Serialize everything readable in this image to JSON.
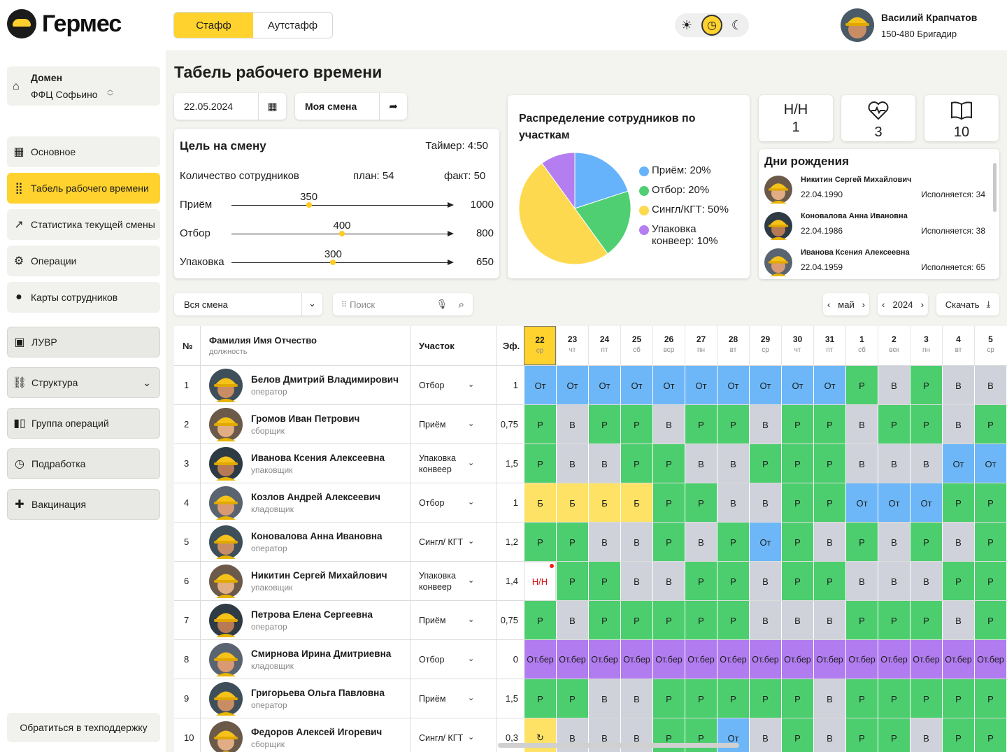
{
  "app": {
    "name": "Гермес"
  },
  "mode_tabs": [
    "Стафф",
    "Аутстафф"
  ],
  "user": {
    "name": "Василий Крапчатов",
    "role": "150-480 Бригадир"
  },
  "sidebar": {
    "domain_label": "Домен",
    "domain_value": "ФФЦ Софьино",
    "items": [
      {
        "label": "Основное",
        "icon": "grid-icon"
      },
      {
        "label": "Табель рабочего времени",
        "icon": "dots-grid-icon"
      },
      {
        "label": "Статистика текущей смены",
        "icon": "trend-icon"
      },
      {
        "label": "Операции",
        "icon": "gear-icon"
      },
      {
        "label": "Карты сотрудников",
        "icon": "person-icon"
      },
      {
        "label": "ЛУВР",
        "icon": "calendar-icon"
      },
      {
        "label": "Структура",
        "icon": "link-icon"
      },
      {
        "label": "Группа операций",
        "icon": "columns-icon"
      },
      {
        "label": "Подработка",
        "icon": "clock-icon"
      },
      {
        "label": "Вакцинация",
        "icon": "plus-icon"
      }
    ],
    "support": "Обратиться в техподдержку"
  },
  "page_title": "Табель рабочего времени",
  "date_value": "22.05.2024",
  "shift_button": "Моя смена",
  "goal": {
    "title": "Цель на смену",
    "timer": "Таймер: 4:50",
    "staff_label": "Количество сотрудников",
    "plan": "план: 54",
    "fact": "факт: 50",
    "rows": [
      {
        "label": "Приём",
        "value": "350",
        "max": "1000",
        "frac": 0.35
      },
      {
        "label": "Отбор",
        "value": "400",
        "max": "800",
        "frac": 0.5
      },
      {
        "label": "Упаковка",
        "value": "300",
        "max": "650",
        "frac": 0.46
      }
    ]
  },
  "distribution": {
    "title": "Распределение сотрудников по участкам",
    "legend": [
      {
        "label": "Приём: 20%",
        "color": "#66b3fb"
      },
      {
        "label": "Отбор: 20%",
        "color": "#4fcf72"
      },
      {
        "label": "Сингл/КГТ: 50%",
        "color": "#fdd94f"
      },
      {
        "label": "Упаковка конвеер: 10%",
        "color": "#b47ef0"
      }
    ]
  },
  "chart_data": {
    "type": "pie",
    "categories": [
      "Приём",
      "Отбор",
      "Сингл/КГТ",
      "Упаковка конвеер"
    ],
    "values": [
      20,
      20,
      50,
      10
    ]
  },
  "stats": {
    "nn_label": "Н/Н",
    "nn_value": "1",
    "health_value": "3",
    "book_value": "10"
  },
  "birthdays": {
    "title": "Дни рождения",
    "items": [
      {
        "name": "Никитин Сергей Михайлович",
        "date": "22.04.1990",
        "age": "Исполняется: 34"
      },
      {
        "name": "Коновалова Анна Ивановна",
        "date": "22.04.1986",
        "age": "Исполняется: 38"
      },
      {
        "name": "Иванова Ксения Алексеевна",
        "date": "22.04.1959",
        "age": "Исполняется: 65"
      }
    ]
  },
  "filters": {
    "shift": "Вся смена",
    "search_placeholder": "Поиск",
    "month": "май",
    "year": "2024",
    "download": "Скачать"
  },
  "table": {
    "col_no": "№",
    "col_name": "Фамилия Имя Отчество",
    "col_name_sub": "должность",
    "col_area": "Участок",
    "col_ef": "Эф.",
    "days": [
      {
        "d": "22",
        "w": "ср"
      },
      {
        "d": "23",
        "w": "чт"
      },
      {
        "d": "24",
        "w": "пт"
      },
      {
        "d": "25",
        "w": "сб"
      },
      {
        "d": "26",
        "w": "вср"
      },
      {
        "d": "27",
        "w": "пн"
      },
      {
        "d": "28",
        "w": "вт"
      },
      {
        "d": "29",
        "w": "ср"
      },
      {
        "d": "30",
        "w": "чт"
      },
      {
        "d": "31",
        "w": "пт"
      },
      {
        "d": "1",
        "w": "сб"
      },
      {
        "d": "2",
        "w": "вск"
      },
      {
        "d": "3",
        "w": "пн"
      },
      {
        "d": "4",
        "w": "вт"
      },
      {
        "d": "5",
        "w": "ср"
      }
    ],
    "rows": [
      {
        "no": "1",
        "name": "Белов Дмитрий Владимирович",
        "role": "оператор",
        "area": "Отбор",
        "ef": "1",
        "cells": [
          "От",
          "От",
          "От",
          "От",
          "От",
          "От",
          "От",
          "От",
          "От",
          "От",
          "Р",
          "В",
          "Р",
          "В",
          "В"
        ]
      },
      {
        "no": "2",
        "name": "Громов Иван Петрович",
        "role": "сборщик",
        "area": "Приём",
        "ef": "0,75",
        "cells": [
          "Р",
          "В",
          "Р",
          "Р",
          "В",
          "Р",
          "Р",
          "В",
          "Р",
          "Р",
          "В",
          "Р",
          "Р",
          "В",
          "Р"
        ]
      },
      {
        "no": "3",
        "name": "Иванова Ксения Алексеевна",
        "role": "упаковщик",
        "area": "Упаковка конвеер",
        "ef": "1,5",
        "cells": [
          "Р",
          "В",
          "В",
          "Р",
          "Р",
          "В",
          "В",
          "Р",
          "Р",
          "Р",
          "В",
          "В",
          "В",
          "От",
          "От"
        ]
      },
      {
        "no": "4",
        "name": "Козлов Андрей Алексеевич",
        "role": "кладовщик",
        "area": "Отбор",
        "ef": "1",
        "cells": [
          "Б",
          "Б",
          "Б",
          "Б",
          "Р",
          "Р",
          "В",
          "В",
          "Р",
          "Р",
          "От",
          "От",
          "От",
          "Р",
          "Р"
        ]
      },
      {
        "no": "5",
        "name": "Коновалова Анна Ивановна",
        "role": "оператор",
        "area": "Сингл/ КГТ",
        "ef": "1,2",
        "cells": [
          "Р",
          "Р",
          "В",
          "В",
          "Р",
          "В",
          "Р",
          "От",
          "Р",
          "В",
          "Р",
          "В",
          "Р",
          "В",
          "Р"
        ]
      },
      {
        "no": "6",
        "name": "Никитин Сергей Михайлович",
        "role": "упаковщик",
        "area": "Упаковка конвеер",
        "ef": "1,4",
        "cells": [
          "Н/Н",
          "Р",
          "Р",
          "В",
          "В",
          "Р",
          "Р",
          "В",
          "Р",
          "Р",
          "В",
          "В",
          "В",
          "Р",
          "Р"
        ]
      },
      {
        "no": "7",
        "name": "Петрова Елена Сергеевна",
        "role": "оператор",
        "area": "Приём",
        "ef": "0,75",
        "cells": [
          "Р",
          "В",
          "Р",
          "Р",
          "Р",
          "Р",
          "Р",
          "В",
          "В",
          "В",
          "Р",
          "Р",
          "Р",
          "В",
          "Р"
        ]
      },
      {
        "no": "8",
        "name": "Смирнова Ирина Дмитриевна",
        "role": "кладовщик",
        "area": "Отбор",
        "ef": "0",
        "cells": [
          "От.бер",
          "От.бер",
          "От.бер",
          "От.бер",
          "От.бер",
          "От.бер",
          "От.бер",
          "От.бер",
          "От.бер",
          "От.бер",
          "От.бер",
          "От.бер",
          "От.бер",
          "От.бер",
          "От.бер"
        ]
      },
      {
        "no": "9",
        "name": "Григорьева Ольга Павловна",
        "role": "оператор",
        "area": "Приём",
        "ef": "1,5",
        "cells": [
          "Р",
          "Р",
          "В",
          "В",
          "Р",
          "Р",
          "Р",
          "Р",
          "Р",
          "В",
          "Р",
          "Р",
          "Р",
          "Р",
          "Р"
        ]
      },
      {
        "no": "10",
        "name": "Федоров Алексей Игоревич",
        "role": "сборщик",
        "area": "Сингл/ КГТ",
        "ef": "0,3",
        "cells": [
          "↻",
          "В",
          "В",
          "В",
          "Р",
          "Р",
          "От",
          "В",
          "Р",
          "В",
          "Р",
          "Р",
          "В",
          "Р",
          "Р"
        ]
      }
    ]
  }
}
